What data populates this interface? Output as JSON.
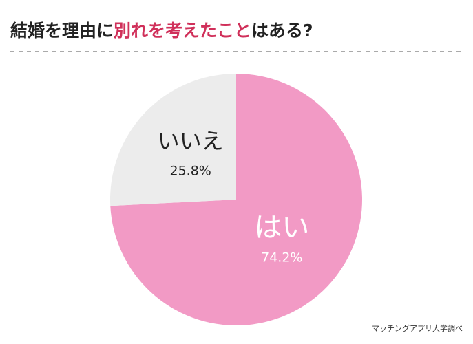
{
  "chart_data": {
    "type": "pie",
    "title_parts": [
      {
        "text": "結婚を理由に",
        "color": "#222222"
      },
      {
        "text": "別れを考えたこと",
        "color": "#d0305a"
      },
      {
        "text": "はある?",
        "color": "#222222"
      }
    ],
    "categories": [
      "はい",
      "いいえ"
    ],
    "values": [
      74.2,
      25.8
    ],
    "value_labels": [
      "74.2%",
      "25.8%"
    ],
    "colors": [
      "#f29ac5",
      "#ececec"
    ],
    "label_colors": [
      "#ffffff",
      "#222222"
    ],
    "source": "マッチングアプリ大学調べ"
  }
}
